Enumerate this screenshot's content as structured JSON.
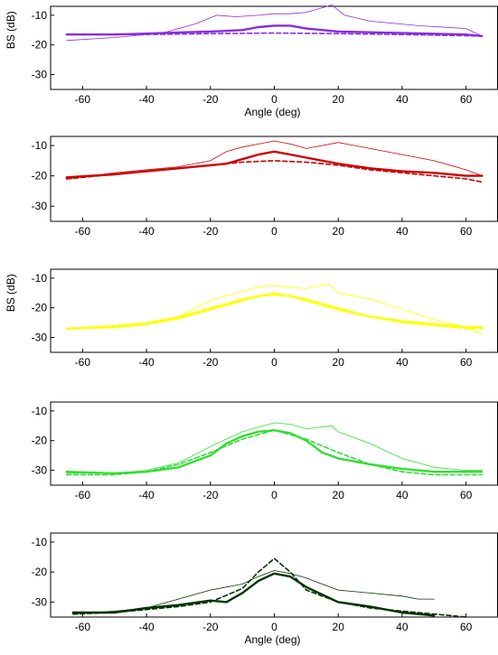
{
  "chart_data": [
    {
      "type": "line",
      "xlabel": "Angle (deg)",
      "ylabel": "BS (dB)",
      "xlim": [
        -70,
        70
      ],
      "ylim": [
        -35,
        -7
      ],
      "xticks": [
        -60,
        -40,
        -20,
        0,
        20,
        40,
        60
      ],
      "yticks": [
        -10,
        -20,
        -30
      ],
      "color": "#8a2be2",
      "series": [
        {
          "style": "thin",
          "x": [
            -65,
            -50,
            -35,
            -25,
            -18,
            -12,
            -5,
            0,
            5,
            10,
            15,
            18,
            22,
            30,
            45,
            60,
            65
          ],
          "y": [
            -18.5,
            -17.5,
            -16,
            -13,
            -10,
            -10.5,
            -10,
            -9.5,
            -9.5,
            -9,
            -7.5,
            -6.5,
            -10,
            -12,
            -13.5,
            -14.5,
            -17
          ]
        },
        {
          "style": "thick",
          "x": [
            -65,
            -50,
            -40,
            -30,
            -20,
            -10,
            -5,
            0,
            5,
            10,
            20,
            40,
            60,
            65
          ],
          "y": [
            -16.5,
            -16.5,
            -16.2,
            -15.8,
            -15.5,
            -15,
            -14,
            -13.5,
            -13.5,
            -14.5,
            -15.5,
            -16,
            -16.5,
            -17
          ]
        },
        {
          "style": "dashed",
          "x": [
            -65,
            -40,
            -20,
            0,
            20,
            40,
            65
          ],
          "y": [
            -16.5,
            -16.5,
            -16.2,
            -16,
            -16.2,
            -16.5,
            -17
          ]
        }
      ]
    },
    {
      "type": "line",
      "xlabel": "",
      "ylabel": "",
      "xlim": [
        -70,
        70
      ],
      "ylim": [
        -35,
        -7
      ],
      "xticks": [
        -60,
        -40,
        -20,
        0,
        20,
        40,
        60
      ],
      "yticks": [
        -10,
        -20,
        -30
      ],
      "color": "#cc0000",
      "series": [
        {
          "style": "thin",
          "x": [
            -65,
            -50,
            -40,
            -30,
            -20,
            -15,
            -10,
            -5,
            0,
            5,
            10,
            15,
            20,
            30,
            40,
            50,
            60,
            65
          ],
          "y": [
            -21,
            -19,
            -18,
            -17,
            -15,
            -12,
            -10.5,
            -9.5,
            -8.5,
            -9.5,
            -11,
            -10,
            -9,
            -11,
            -13,
            -15,
            -18,
            -20
          ]
        },
        {
          "style": "thick",
          "x": [
            -65,
            -50,
            -40,
            -30,
            -20,
            -15,
            -10,
            -5,
            0,
            5,
            10,
            20,
            30,
            40,
            50,
            60,
            65
          ],
          "y": [
            -20.5,
            -19.5,
            -18.5,
            -17.5,
            -16.5,
            -16,
            -14.5,
            -13,
            -12,
            -13,
            -14,
            -16,
            -17.5,
            -18.5,
            -19,
            -20,
            -20
          ]
        },
        {
          "style": "dashed",
          "x": [
            -65,
            -50,
            -40,
            -30,
            -20,
            -10,
            0,
            10,
            20,
            30,
            40,
            50,
            60,
            65
          ],
          "y": [
            -21,
            -19.5,
            -18.5,
            -17.5,
            -16.5,
            -15.5,
            -15,
            -15.5,
            -16.5,
            -18,
            -19,
            -20,
            -21,
            -22
          ]
        }
      ]
    },
    {
      "type": "line",
      "xlabel": "",
      "ylabel": "BS (dB)",
      "xlim": [
        -70,
        70
      ],
      "ylim": [
        -35,
        -7
      ],
      "xticks": [
        -60,
        -40,
        -20,
        0,
        20,
        40,
        60
      ],
      "yticks": [
        -10,
        -20,
        -30
      ],
      "color": "#ffff00",
      "series": [
        {
          "style": "thin",
          "x": [
            -65,
            -50,
            -40,
            -30,
            -20,
            -10,
            -5,
            0,
            5,
            10,
            17,
            20,
            30,
            40,
            50,
            60,
            65
          ],
          "y": [
            -27,
            -26.5,
            -25.5,
            -23,
            -17.5,
            -14.5,
            -13,
            -12.5,
            -13,
            -13.5,
            -12,
            -15,
            -17,
            -20.5,
            -24,
            -26.5,
            -29
          ]
        },
        {
          "style": "thick",
          "x": [
            -65,
            -50,
            -40,
            -30,
            -20,
            -10,
            -5,
            0,
            5,
            10,
            20,
            30,
            40,
            50,
            60,
            65
          ],
          "y": [
            -27,
            -26.5,
            -25.5,
            -23.5,
            -20.5,
            -17.5,
            -16,
            -15.5,
            -16,
            -17.5,
            -20.5,
            -23,
            -24.5,
            -25.5,
            -26.5,
            -26.5
          ]
        },
        {
          "style": "dashed",
          "x": [
            -65,
            -50,
            -40,
            -30,
            -20,
            -10,
            0,
            10,
            20,
            30,
            40,
            50,
            60,
            65
          ],
          "y": [
            -27,
            -26,
            -25,
            -23,
            -20,
            -17,
            -15,
            -17,
            -20,
            -23,
            -25,
            -26,
            -27,
            -27
          ]
        }
      ]
    },
    {
      "type": "line",
      "xlabel": "",
      "ylabel": "",
      "xlim": [
        -70,
        70
      ],
      "ylim": [
        -35,
        -7
      ],
      "xticks": [
        -60,
        -40,
        -20,
        0,
        20,
        40,
        60
      ],
      "yticks": [
        -10,
        -20,
        -30
      ],
      "color": "#33dd33",
      "series": [
        {
          "style": "thin",
          "x": [
            -65,
            -50,
            -40,
            -30,
            -20,
            -10,
            -5,
            0,
            5,
            10,
            18,
            20,
            30,
            40,
            50,
            60,
            65
          ],
          "y": [
            -31,
            -31,
            -30,
            -27.5,
            -22,
            -17,
            -15.5,
            -14,
            -14.5,
            -16,
            -15,
            -17,
            -21,
            -26,
            -29,
            -30,
            -30
          ]
        },
        {
          "style": "thick",
          "x": [
            -65,
            -50,
            -40,
            -30,
            -20,
            -15,
            -10,
            -5,
            0,
            5,
            10,
            15,
            20,
            30,
            40,
            50,
            60,
            65
          ],
          "y": [
            -30.5,
            -31,
            -30.5,
            -29,
            -25,
            -21,
            -18.5,
            -17,
            -16.5,
            -17.5,
            -20,
            -24,
            -26,
            -28,
            -29.5,
            -30.5,
            -30.5,
            -30.5
          ]
        },
        {
          "style": "dashed",
          "x": [
            -65,
            -50,
            -40,
            -30,
            -20,
            -10,
            0,
            10,
            20,
            30,
            40,
            50,
            60,
            65
          ],
          "y": [
            -31.5,
            -31.5,
            -30.5,
            -28,
            -24,
            -19.5,
            -16.5,
            -19.5,
            -24,
            -28,
            -30.5,
            -31.5,
            -31.5,
            -31.5
          ]
        }
      ]
    },
    {
      "type": "line",
      "xlabel": "Angle (deg)",
      "ylabel": "",
      "xlim": [
        -70,
        70
      ],
      "ylim": [
        -35,
        -7
      ],
      "xticks": [
        -60,
        -40,
        -20,
        0,
        20,
        40,
        60
      ],
      "yticks": [
        -10,
        -20,
        -30
      ],
      "color": "#003300",
      "series": [
        {
          "style": "thin",
          "x": [
            -63,
            -50,
            -40,
            -30,
            -20,
            -10,
            -5,
            0,
            5,
            10,
            15,
            20,
            30,
            40,
            45,
            50
          ],
          "y": [
            -34,
            -33,
            -32,
            -29,
            -26,
            -24,
            -21.5,
            -19.5,
            -20.5,
            -22,
            -24,
            -26,
            -27,
            -28,
            -29,
            -29
          ]
        },
        {
          "style": "thick",
          "x": [
            -63,
            -50,
            -40,
            -30,
            -20,
            -15,
            -10,
            -5,
            0,
            5,
            10,
            20,
            30,
            40,
            50
          ],
          "y": [
            -33.5,
            -33.5,
            -32,
            -31,
            -29.5,
            -30,
            -27,
            -23,
            -20.5,
            -21.5,
            -25,
            -30,
            -31.5,
            -33.5,
            -34.5
          ]
        },
        {
          "style": "dashed",
          "x": [
            -63,
            -50,
            -40,
            -30,
            -20,
            -10,
            -5,
            0,
            5,
            10,
            20,
            30,
            40,
            50,
            60
          ],
          "y": [
            -34,
            -33.5,
            -32.5,
            -31.5,
            -30,
            -25.5,
            -20,
            -15.5,
            -20,
            -26,
            -30,
            -32,
            -33,
            -34,
            -35
          ]
        }
      ]
    }
  ]
}
